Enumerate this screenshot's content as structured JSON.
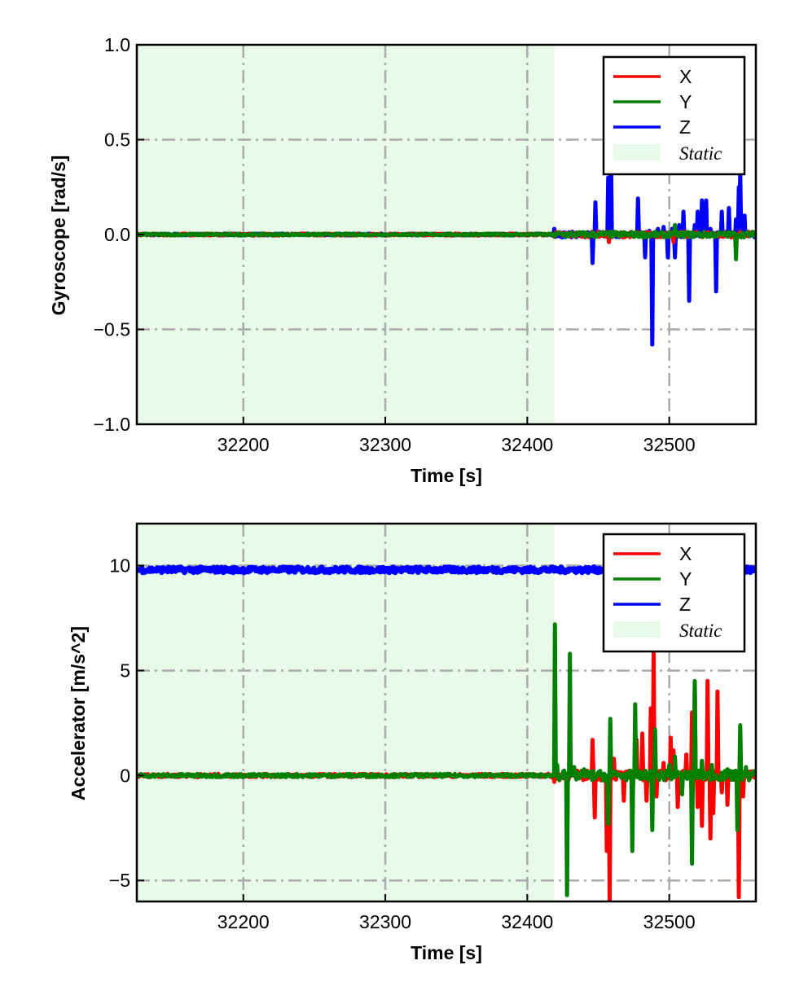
{
  "chart_data": [
    {
      "type": "line",
      "title": "",
      "xlabel": "Time [s]",
      "ylabel": "Gyroscope [rad/s]",
      "xlim": [
        32125,
        32561
      ],
      "ylim": [
        -1.0,
        1.0
      ],
      "xticks": [
        32200,
        32300,
        32400,
        32500
      ],
      "xtick_labels": [
        "32200",
        "32300",
        "32400",
        "32500"
      ],
      "yticks": [
        1.0,
        0.5,
        0.0,
        -0.5,
        -1.0
      ],
      "ytick_labels": [
        "1.0",
        "0.5",
        "0.0",
        "−0.5",
        "−1.0"
      ],
      "grid": true,
      "legend_position": "top-right",
      "static_region": {
        "label": "Static",
        "start": 32125,
        "end": 32419,
        "color": "#e8fbe8"
      },
      "baseline": 0,
      "noise": 0.005,
      "series": [
        {
          "name": "X",
          "color": "#ff0000",
          "spikes": [
            [
              32457.5,
              -0.04
            ],
            [
              32503,
              -0.04
            ]
          ]
        },
        {
          "name": "Y",
          "color": "#008000",
          "spikes": [
            [
              32504,
              0.05
            ],
            [
              32547,
              -0.13
            ]
          ]
        },
        {
          "name": "Z",
          "color": "#0000ff",
          "spikes": [
            [
              32419,
              0.03
            ],
            [
              32446,
              -0.15
            ],
            [
              32448,
              0.17
            ],
            [
              32457,
              0.3
            ],
            [
              32459,
              0.42
            ],
            [
              32478,
              0.19
            ],
            [
              32483,
              -0.12
            ],
            [
              32486,
              0.02
            ],
            [
              32488,
              -0.58
            ],
            [
              32492,
              0.03
            ],
            [
              32496,
              0.04
            ],
            [
              32499,
              -0.12
            ],
            [
              32502,
              0.03
            ],
            [
              32504,
              -0.12
            ],
            [
              32507,
              0.05
            ],
            [
              32510,
              0.12
            ],
            [
              32514,
              -0.35
            ],
            [
              32518,
              0.05
            ],
            [
              32520,
              0.12
            ],
            [
              32523,
              0.18
            ],
            [
              32526,
              0.18
            ],
            [
              32529,
              0.03
            ],
            [
              32533,
              -0.3
            ],
            [
              32537,
              0.12
            ],
            [
              32542,
              0.14
            ],
            [
              32547,
              0.08
            ],
            [
              32549,
              0.25
            ],
            [
              32550,
              0.33
            ],
            [
              32553,
              0.1
            ]
          ]
        }
      ]
    },
    {
      "type": "line",
      "title": "",
      "xlabel": "Time [s]",
      "ylabel": "Accelerator [m/s^2]",
      "xlim": [
        32125,
        32561
      ],
      "ylim": [
        -6,
        12
      ],
      "xticks": [
        32200,
        32300,
        32400,
        32500
      ],
      "xtick_labels": [
        "32200",
        "32300",
        "32400",
        "32500"
      ],
      "yticks": [
        10,
        5,
        0,
        -5
      ],
      "ytick_labels": [
        "10",
        "5",
        "0",
        "−5"
      ],
      "grid": true,
      "legend_position": "top-right",
      "static_region": {
        "label": "Static",
        "start": 32125,
        "end": 32419,
        "color": "#e8fbe8"
      },
      "noise": 0.08,
      "series": [
        {
          "name": "X",
          "color": "#ff0000",
          "baseline": 0,
          "spikes": [
            [
              32419,
              -0.3
            ],
            [
              32446,
              1.7
            ],
            [
              32447.5,
              -2.0
            ],
            [
              32456,
              -3.6
            ],
            [
              32458,
              -6.0
            ],
            [
              32461,
              0.8
            ],
            [
              32468,
              -1.2
            ],
            [
              32474,
              -2.0
            ],
            [
              32477,
              1.7
            ],
            [
              32481,
              2.0
            ],
            [
              32484,
              -1.2
            ],
            [
              32487,
              3.2
            ],
            [
              32489,
              6.0
            ],
            [
              32491,
              -1.0
            ],
            [
              32496,
              0.6
            ],
            [
              32501,
              1.8
            ],
            [
              32503,
              1.2
            ],
            [
              32506,
              -1.5
            ],
            [
              32512,
              1.0
            ],
            [
              32516,
              3.0
            ],
            [
              32518,
              4.2
            ],
            [
              32520,
              -1.5
            ],
            [
              32523,
              -2.4
            ],
            [
              32527,
              4.5
            ],
            [
              32529,
              -3.0
            ],
            [
              32531,
              -1.8
            ],
            [
              32534,
              4.0
            ],
            [
              32537,
              -0.8
            ],
            [
              32541,
              -1.4
            ],
            [
              32549,
              -5.8
            ],
            [
              32552,
              -1.0
            ]
          ]
        },
        {
          "name": "Y",
          "color": "#008000",
          "baseline": 0,
          "spikes": [
            [
              32419.5,
              7.2
            ],
            [
              32421,
              0.5
            ],
            [
              32428,
              -5.7
            ],
            [
              32430,
              5.8
            ],
            [
              32433,
              0.4
            ],
            [
              32440,
              0.3
            ],
            [
              32457,
              -2.3
            ],
            [
              32458.5,
              2.7
            ],
            [
              32474,
              -3.6
            ],
            [
              32476,
              3.4
            ],
            [
              32488,
              -2.6
            ],
            [
              32490,
              2.2
            ],
            [
              32500,
              0.5
            ],
            [
              32504,
              0.9
            ],
            [
              32509,
              -0.9
            ],
            [
              32516,
              -4.2
            ],
            [
              32518,
              4.5
            ],
            [
              32523,
              0.7
            ],
            [
              32530,
              0.5
            ],
            [
              32541,
              0.3
            ],
            [
              32548,
              -2.6
            ],
            [
              32550,
              2.4
            ],
            [
              32554,
              0.4
            ]
          ]
        },
        {
          "name": "Z",
          "color": "#0000ff",
          "baseline": 9.8,
          "spikes": []
        }
      ]
    }
  ]
}
